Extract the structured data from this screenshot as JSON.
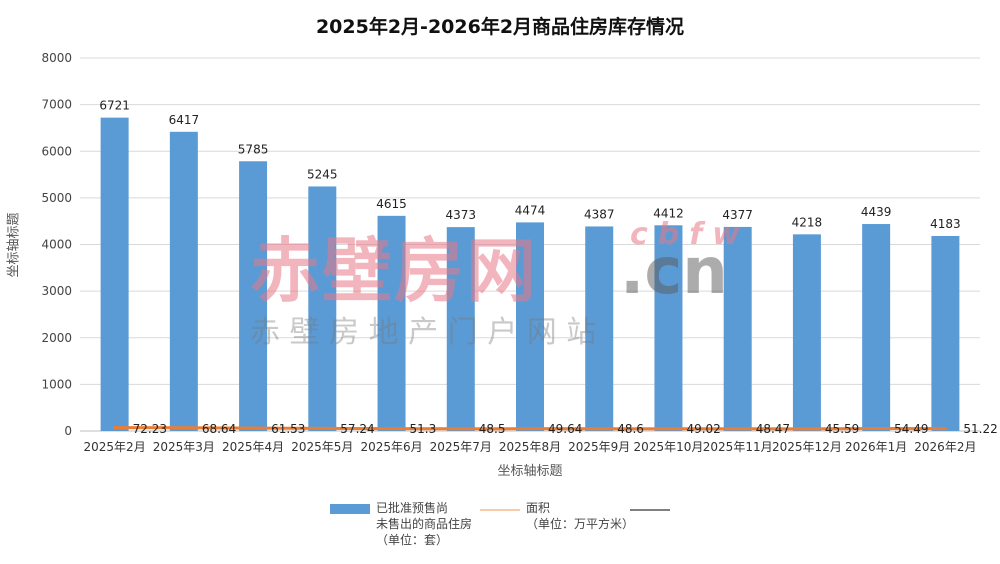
{
  "chart_data": {
    "type": "bar",
    "title": "2025年2月-2026年2月商品住房库存情况",
    "xlabel": "坐标轴标题",
    "ylabel": "坐标轴标题",
    "ylim": [
      0,
      8000
    ],
    "yticks": [
      "0",
      "1000",
      "2000",
      "3000",
      "4000",
      "5000",
      "6000",
      "7000",
      "8000"
    ],
    "categories": [
      "2025年2月",
      "2025年3月",
      "2025年4月",
      "2025年5月",
      "2025年6月",
      "2025年7月",
      "2025年8月",
      "2025年9月",
      "2025年10月",
      "2025年11月",
      "2025年12月",
      "2026年1月",
      "2026年2月"
    ],
    "series": [
      {
        "name": "已批准预售尚未售出的商品住房（单位：套）",
        "type": "bar",
        "color": "#5b9bd5",
        "values": [
          6721,
          6417,
          5785,
          5245,
          4615,
          4373,
          4474,
          4387,
          4412,
          4377,
          4218,
          4439,
          4183
        ],
        "labels": [
          "6721",
          "6417",
          "5785",
          "5245",
          "4615",
          "4373",
          "4474",
          "4387",
          "4412",
          "4377",
          "4218",
          "4439",
          "4183"
        ]
      },
      {
        "name": "面积（单位：万平方米）",
        "type": "line",
        "color": "#ed7d31",
        "values": [
          72.23,
          68.64,
          61.53,
          57.24,
          51.3,
          48.5,
          49.64,
          48.6,
          49.02,
          48.47,
          45.59,
          54.49,
          51.22
        ],
        "labels": [
          "72.23",
          "68.64",
          "61.53",
          "57.24",
          "51.3",
          "48.5",
          "49.64",
          "48.6",
          "49.02",
          "48.47",
          "45.59",
          "54.49",
          "51.22"
        ]
      }
    ],
    "grid": true,
    "legend_position": "bottom"
  },
  "legend": {
    "bar_line1": "已批准预售尚",
    "bar_line2": "未售出的商品住房",
    "bar_line3": "（单位：套）",
    "area_line1": "面积",
    "area_line2": "（单位：万平方米）",
    "third_color": "#808080"
  },
  "watermark": {
    "main": "赤壁房网",
    "latin": "cbfw",
    "domain": ".cn",
    "sub": "赤 壁 房 地 产 门 户 网 站",
    "color": "#e8a0a8"
  }
}
